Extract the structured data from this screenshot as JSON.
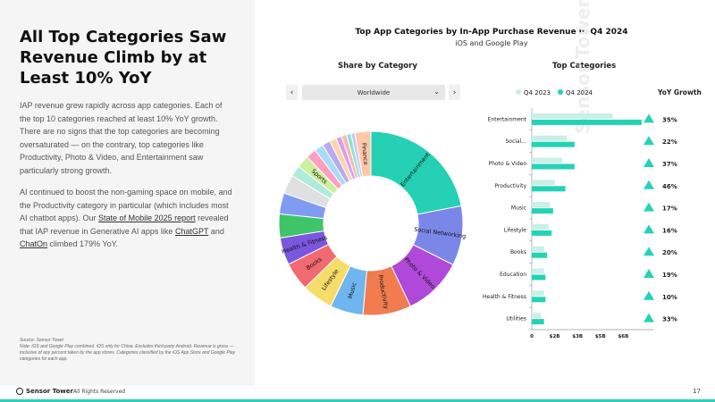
{
  "left_panel": {
    "title": "All Top Categories Saw Revenue Climb by at Least 10% YoY",
    "p1": "IAP revenue grew rapidly across app categories. Each of the top 10 categories reached at least 10% YoY growth. There are no signs that the top categories are becoming oversaturated — on the contrary, top categories like Productivity, Photo & Video, and Entertainment saw particularly strong growth.",
    "p2_a": "AI continued to boost the non-gaming space on mobile, and the Productivity category in particular (which includes most AI chatbot apps). Our ",
    "p2_link1": "State of Mobile 2025 report",
    "p2_b": " revealed that IAP revenue in Generative AI apps like ",
    "p2_link2": "ChatGPT",
    "p2_c": " and ",
    "p2_link3": "ChatOn",
    "p2_d": " climbed 179% YoY.",
    "source": "Source: Sensor Tower",
    "note": "Note: iOS and Google Play combined. iOS only for China. Excludes third-party Android. Revenue is gross — inclusive of any percent taken by the app stores. Categories classified by the iOS App Store and Google Play categories for each app."
  },
  "footer": {
    "logo_text": "Sensor Tower",
    "rights": "All Rights Reserved",
    "page": "17"
  },
  "chart_header": {
    "title": "Top App Categories by In-App Purchase Revenue in Q4 2024",
    "subtitle": "iOS and Google Play",
    "left_section": "Share by Category",
    "right_section": "Top Categories",
    "yoy_header": "YoY Growth",
    "dropdown_value": "Worldwide",
    "prev_arrow": "‹",
    "next_arrow": "›",
    "watermark": "Sensor Tower"
  },
  "colors": {
    "q2023": "#c9efe6",
    "q2024": "#24d3b6",
    "yoy_triangle": "#24d3b6"
  },
  "chart_data": [
    {
      "type": "pie",
      "title": "Share by Category",
      "slices": [
        {
          "label": "Entertainment",
          "value": 22.0,
          "color": "#25d0b4"
        },
        {
          "label": "Social Networking",
          "value": 10.5,
          "color": "#7b87e8"
        },
        {
          "label": "Photo & Video",
          "value": 10.5,
          "color": "#b048da"
        },
        {
          "label": "Productivity",
          "value": 8.5,
          "color": "#f07c4f"
        },
        {
          "label": "Music",
          "value": 5.8,
          "color": "#6fb5f0"
        },
        {
          "label": "Lifestyle",
          "value": 5.5,
          "color": "#f6dc69"
        },
        {
          "label": "Books",
          "value": 5.0,
          "color": "#f06a70"
        },
        {
          "label": "Health & Fitness",
          "value": 4.8,
          "color": "#7a57de"
        },
        {
          "label": "",
          "value": 4.2,
          "color": "#3fc46a"
        },
        {
          "label": "",
          "value": 3.7,
          "color": "#7f9bf2"
        },
        {
          "label": "",
          "value": 3.3,
          "color": "#e0e0e0"
        },
        {
          "label": "",
          "value": 2.0,
          "color": "#b1ecda"
        },
        {
          "label": "Sports",
          "value": 2.2,
          "color": "#cdef9f"
        },
        {
          "label": "",
          "value": 1.8,
          "color": "#ff9ec0"
        },
        {
          "label": "",
          "value": 1.6,
          "color": "#a8dcf7"
        },
        {
          "label": "",
          "value": 1.4,
          "color": "#b9a9f2"
        },
        {
          "label": "",
          "value": 1.2,
          "color": "#ffd4a6"
        },
        {
          "label": "",
          "value": 1.0,
          "color": "#d6a0ef"
        },
        {
          "label": "",
          "value": 0.9,
          "color": "#ffb6b6"
        },
        {
          "label": "",
          "value": 0.8,
          "color": "#8fe3cc"
        },
        {
          "label": "",
          "value": 0.7,
          "color": "#c8c8f5"
        },
        {
          "label": "Finance",
          "value": 2.8,
          "color": "#ffc8a8"
        }
      ]
    },
    {
      "type": "bar",
      "title": "Top Categories",
      "categories": [
        "Entertainment",
        "Social...",
        "Photo & Video",
        "Productivity",
        "Music",
        "Lifestyle",
        "Books",
        "Education",
        "Health & Fitness",
        "Utilities"
      ],
      "series": [
        {
          "name": "Q4 2023",
          "values": [
            5.3,
            2.3,
            2.0,
            1.5,
            1.2,
            1.1,
            0.8,
            0.8,
            0.8,
            0.6
          ]
        },
        {
          "name": "Q4 2024",
          "values": [
            7.2,
            2.8,
            2.8,
            2.2,
            1.4,
            1.3,
            1.0,
            0.9,
            0.9,
            0.8
          ]
        }
      ],
      "yoy": [
        "35%",
        "22%",
        "37%",
        "46%",
        "17%",
        "16%",
        "20%",
        "19%",
        "10%",
        "33%"
      ],
      "x_ticks": [
        "0",
        "$2B",
        "$3B",
        "$5B",
        "$6B"
      ],
      "x_tick_values": [
        0,
        1.5,
        3.0,
        4.5,
        6.0
      ],
      "xlim": [
        0,
        7.5
      ]
    }
  ]
}
